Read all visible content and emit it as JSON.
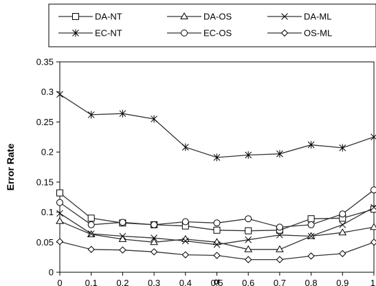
{
  "chart_data": {
    "type": "line",
    "title": "",
    "xlabel": "α",
    "ylabel": "Error Rate",
    "x": [
      0,
      0.1,
      0.2,
      0.3,
      0.4,
      0.5,
      0.6,
      0.7,
      0.8,
      0.9,
      1
    ],
    "x_tick_labels": [
      "0",
      "0.1",
      "0.2",
      "0.3",
      "0.4",
      "0.5",
      "0.6",
      "0.7",
      "0.8",
      "0.9",
      "1"
    ],
    "xlim": [
      0,
      1
    ],
    "ylim": [
      0,
      0.35
    ],
    "y_ticks": [
      0,
      0.05,
      0.1,
      0.15,
      0.2,
      0.25,
      0.3,
      0.35
    ],
    "y_tick_labels": [
      "0",
      "0.05",
      "0.1",
      "0.15",
      "0.2",
      "0.25",
      "0.3",
      "0.35"
    ],
    "grid": false,
    "legend_position": "top",
    "series": [
      {
        "name": "DA-NT",
        "marker": "square",
        "values": [
          0.132,
          0.09,
          0.082,
          0.079,
          0.077,
          0.07,
          0.069,
          0.07,
          0.089,
          0.09,
          0.105
        ]
      },
      {
        "name": "DA-OS",
        "marker": "triangle",
        "values": [
          0.085,
          0.063,
          0.055,
          0.05,
          0.055,
          0.05,
          0.038,
          0.038,
          0.06,
          0.066,
          0.075
        ]
      },
      {
        "name": "DA-ML",
        "marker": "x",
        "values": [
          0.098,
          0.064,
          0.06,
          0.057,
          0.052,
          0.046,
          0.054,
          0.062,
          0.06,
          0.079,
          0.108
        ]
      },
      {
        "name": "EC-NT",
        "marker": "asterisk",
        "values": [
          0.296,
          0.262,
          0.264,
          0.255,
          0.208,
          0.191,
          0.195,
          0.197,
          0.212,
          0.207,
          0.225
        ]
      },
      {
        "name": "EC-OS",
        "marker": "circle",
        "values": [
          0.116,
          0.079,
          0.083,
          0.079,
          0.084,
          0.082,
          0.089,
          0.075,
          0.079,
          0.097,
          0.137
        ]
      },
      {
        "name": "OS-ML",
        "marker": "diamond",
        "values": [
          0.051,
          0.038,
          0.037,
          0.034,
          0.029,
          0.028,
          0.021,
          0.021,
          0.027,
          0.031,
          0.05
        ]
      }
    ]
  }
}
